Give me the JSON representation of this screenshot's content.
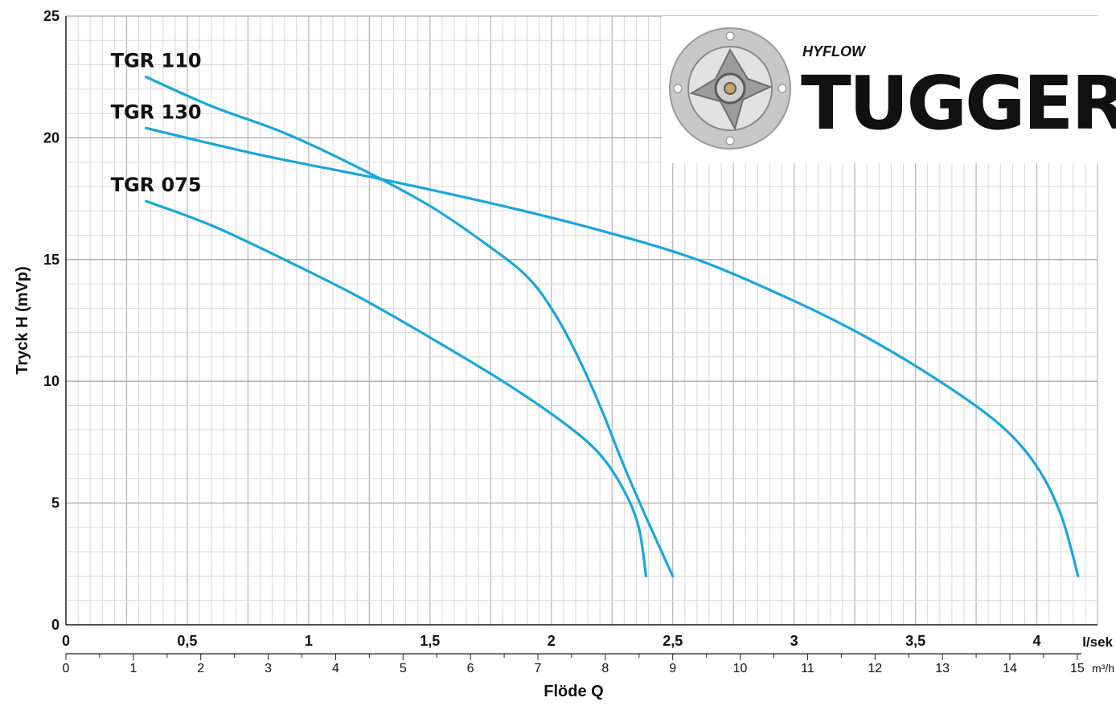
{
  "chart_data": {
    "type": "line",
    "xlabel": "Flöde Q",
    "ylabel": "Tryck H  (mVp)",
    "x_unit": "l/sek",
    "x2_unit": "m³/h",
    "xlim": [
      0,
      4.25
    ],
    "ylim": [
      0,
      25
    ],
    "y_ticks": [
      "0",
      "5",
      "10",
      "15",
      "20",
      "25"
    ],
    "x_ticks_lsek": [
      {
        "v": 0,
        "label": "0"
      },
      {
        "v": 0.5,
        "label": "0,5"
      },
      {
        "v": 1,
        "label": "1"
      },
      {
        "v": 1.5,
        "label": "1,5"
      },
      {
        "v": 2,
        "label": "2"
      },
      {
        "v": 2.5,
        "label": "2,5"
      },
      {
        "v": 3,
        "label": "3"
      },
      {
        "v": 3.5,
        "label": "3,5"
      },
      {
        "v": 4,
        "label": "4"
      }
    ],
    "x_ticks_m3h": [
      "0",
      "1",
      "2",
      "3",
      "4",
      "5",
      "6",
      "7",
      "8",
      "9",
      "10",
      "11",
      "12",
      "13",
      "14",
      "15"
    ],
    "grid": true,
    "line_color": "#1ba6dc",
    "series": [
      {
        "name": "TGR 110",
        "points": [
          [
            0.33,
            22.5
          ],
          [
            0.6,
            21.3
          ],
          [
            0.9,
            20.2
          ],
          [
            1.2,
            18.8
          ],
          [
            1.5,
            17.2
          ],
          [
            1.75,
            15.5
          ],
          [
            1.9,
            14.3
          ],
          [
            2.0,
            13.0
          ],
          [
            2.1,
            11.2
          ],
          [
            2.2,
            9.0
          ],
          [
            2.3,
            6.5
          ],
          [
            2.4,
            4.2
          ],
          [
            2.5,
            2.0
          ]
        ]
      },
      {
        "name": "TGR 130",
        "points": [
          [
            0.33,
            20.4
          ],
          [
            0.8,
            19.3
          ],
          [
            1.3,
            18.3
          ],
          [
            1.8,
            17.2
          ],
          [
            2.2,
            16.2
          ],
          [
            2.6,
            15.0
          ],
          [
            3.0,
            13.3
          ],
          [
            3.3,
            11.8
          ],
          [
            3.6,
            10.0
          ],
          [
            3.85,
            8.2
          ],
          [
            4.0,
            6.5
          ],
          [
            4.1,
            4.5
          ],
          [
            4.17,
            2.0
          ]
        ]
      },
      {
        "name": "TGR 075",
        "points": [
          [
            0.33,
            17.4
          ],
          [
            0.6,
            16.4
          ],
          [
            0.9,
            15.0
          ],
          [
            1.2,
            13.5
          ],
          [
            1.5,
            11.8
          ],
          [
            1.8,
            10.0
          ],
          [
            2.05,
            8.3
          ],
          [
            2.2,
            7.0
          ],
          [
            2.3,
            5.5
          ],
          [
            2.36,
            4.0
          ],
          [
            2.39,
            2.0
          ]
        ]
      }
    ]
  },
  "logo": {
    "brand_small": "HYFLOW",
    "brand_big": "TUGGER"
  }
}
